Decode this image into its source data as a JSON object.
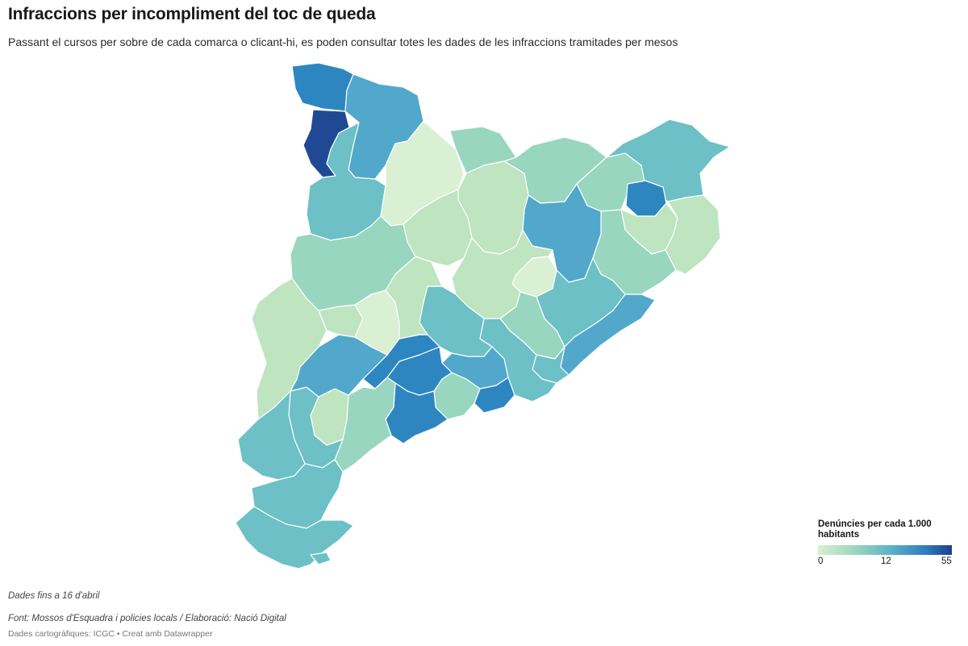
{
  "header": {
    "title": "Infraccions per incompliment del toc de queda",
    "subtitle": "Passant el cursos per sobre de cada comarca o clicant-hi, es poden consultar totes les dades de les infraccions tramitades per mesos"
  },
  "legend": {
    "title": "Denúncies per cada 1.000 habitants",
    "ticks": [
      "0",
      "12",
      "55"
    ],
    "colors": [
      "#d8f0cf",
      "#96d3be",
      "#5ab0c8",
      "#2f7fbd",
      "#1f3f8f"
    ]
  },
  "footer": {
    "note": "Dades fins a 16 d'abril",
    "source": "Font: Mossos d'Esquadra i policies locals / Elaboració: Nació Digital",
    "credits": "Dades cartogràfiques: ICGC • Creat amb Datawrapper"
  },
  "palette": {
    "very_light": "#d9f0d3",
    "light": "#bfe4c0",
    "light_teal": "#98d6c0",
    "teal": "#6cc0c6",
    "mid_blue": "#52a8cb",
    "blue": "#2e86c1",
    "dark_blue": "#1f4a93"
  }
}
